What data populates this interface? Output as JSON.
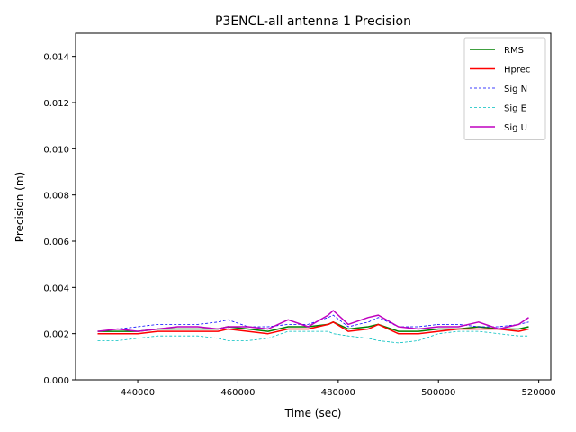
{
  "chart_data": {
    "type": "line",
    "title": "P3ENCL-all antenna 1 Precision",
    "xlabel": "Time (sec)",
    "ylabel": "Precision (m)",
    "xlim": [
      427600,
      522400
    ],
    "ylim": [
      0.0,
      0.015
    ],
    "xticks": [
      440000,
      460000,
      480000,
      500000,
      520000
    ],
    "xtick_labels": [
      "440000",
      "460000",
      "480000",
      "500000",
      "520000"
    ],
    "yticks": [
      0.0,
      0.002,
      0.004,
      0.006,
      0.008,
      0.01,
      0.012,
      0.014
    ],
    "ytick_labels": [
      "0.000",
      "0.002",
      "0.004",
      "0.006",
      "0.008",
      "0.010",
      "0.012",
      "0.014"
    ],
    "grid": false,
    "legend_position": "top-right",
    "x": [
      432000,
      436000,
      440000,
      444000,
      448000,
      452000,
      456000,
      458000,
      462000,
      466000,
      470000,
      474000,
      478000,
      479000,
      482000,
      486000,
      488000,
      492000,
      496000,
      500000,
      504000,
      508000,
      512000,
      516000,
      518000
    ],
    "series": [
      {
        "name": "RMS",
        "color": "#008000",
        "style": "solid",
        "width": 1.5,
        "values": [
          0.0021,
          0.0021,
          0.0021,
          0.0022,
          0.0022,
          0.0022,
          0.0022,
          0.0023,
          0.0022,
          0.0021,
          0.0023,
          0.0023,
          0.0024,
          0.0025,
          0.0022,
          0.0023,
          0.0024,
          0.0021,
          0.0021,
          0.0022,
          0.0022,
          0.0023,
          0.0022,
          0.0022,
          0.0023
        ]
      },
      {
        "name": "Hprec",
        "color": "#ff0000",
        "style": "solid",
        "width": 1.5,
        "values": [
          0.002,
          0.002,
          0.002,
          0.0021,
          0.0021,
          0.0021,
          0.0021,
          0.0022,
          0.0021,
          0.002,
          0.0022,
          0.0022,
          0.0024,
          0.0025,
          0.0021,
          0.0022,
          0.0024,
          0.002,
          0.002,
          0.0021,
          0.0022,
          0.0022,
          0.0022,
          0.0021,
          0.0022
        ]
      },
      {
        "name": "Sig N",
        "color": "#0000ff",
        "style": "dashed",
        "width": 0.8,
        "values": [
          0.0022,
          0.0022,
          0.0023,
          0.0024,
          0.0024,
          0.0024,
          0.0025,
          0.0026,
          0.0023,
          0.0023,
          0.0024,
          0.0024,
          0.0027,
          0.0028,
          0.0023,
          0.0025,
          0.0027,
          0.0023,
          0.0023,
          0.0024,
          0.0024,
          0.0023,
          0.0023,
          0.0024,
          0.0025
        ]
      },
      {
        "name": "Sig E",
        "color": "#00bfbf",
        "style": "dashed",
        "width": 0.8,
        "values": [
          0.0017,
          0.0017,
          0.0018,
          0.0019,
          0.0019,
          0.0019,
          0.0018,
          0.0017,
          0.0017,
          0.0018,
          0.0021,
          0.0021,
          0.0021,
          0.002,
          0.0019,
          0.0018,
          0.0017,
          0.0016,
          0.0017,
          0.002,
          0.0021,
          0.0021,
          0.002,
          0.0019,
          0.0019
        ]
      },
      {
        "name": "Sig U",
        "color": "#bf00bf",
        "style": "solid",
        "width": 1.5,
        "values": [
          0.0021,
          0.0022,
          0.0021,
          0.0022,
          0.0023,
          0.0023,
          0.0022,
          0.0023,
          0.0023,
          0.0022,
          0.0026,
          0.0023,
          0.0028,
          0.003,
          0.0024,
          0.0027,
          0.0028,
          0.0023,
          0.0022,
          0.0023,
          0.0023,
          0.0025,
          0.0022,
          0.0024,
          0.0027
        ]
      }
    ]
  }
}
